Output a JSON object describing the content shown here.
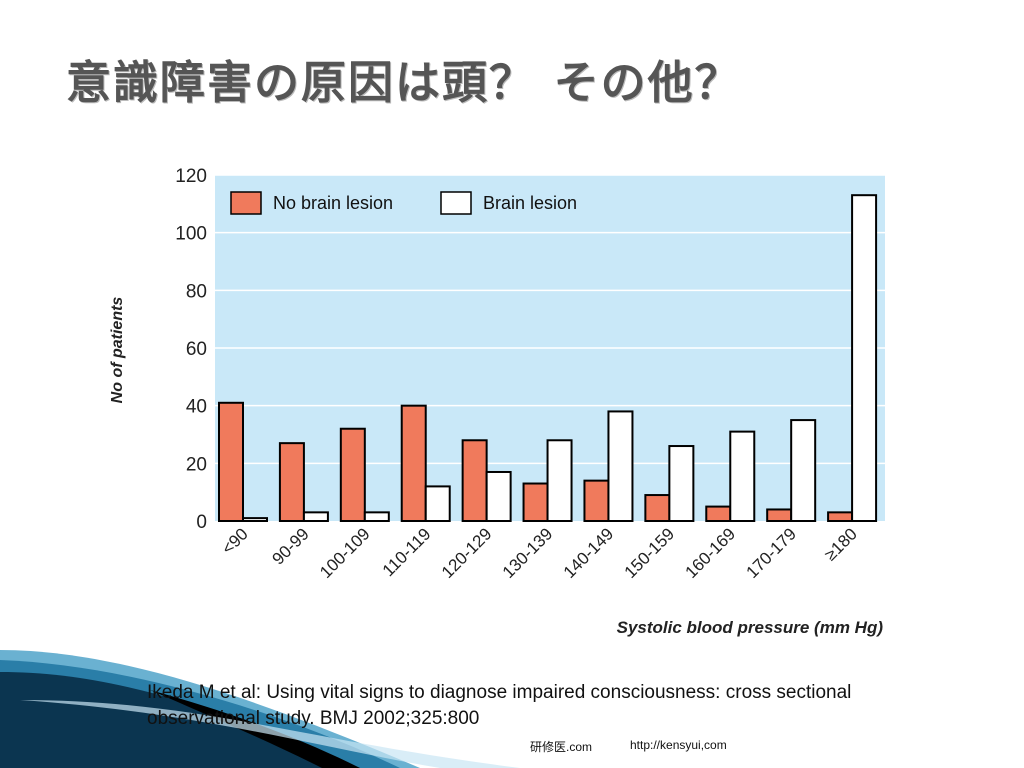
{
  "slide": {
    "title": "意識障害の原因は頭？ その他？",
    "citation": "Ikeda M et al: Using vital signs to diagnose impaired consciousness: cross sectional observational study. BMJ 2002;325:800",
    "footer_site_name": "研修医.com",
    "footer_site_url": "http://kensyui,com"
  },
  "colors": {
    "plot_background": "#c9e8f8",
    "no_lesion_fill": "#f07a5c",
    "lesion_fill": "#ffffff",
    "title_color": "#555555",
    "swoosh_dark": "#0b3550",
    "swoosh_light": "#5aa9cc"
  },
  "chart_data": {
    "type": "bar",
    "title": "",
    "xlabel": "Systolic blood pressure (mm Hg)",
    "ylabel": "No of patients",
    "ylim": [
      0,
      120
    ],
    "yticks": [
      0,
      20,
      40,
      60,
      80,
      100,
      120
    ],
    "grid": true,
    "legend_position": "top-left",
    "categories": [
      "<90",
      "90-99",
      "100-109",
      "110-119",
      "120-129",
      "130-139",
      "140-149",
      "150-159",
      "160-169",
      "170-179",
      "≥180"
    ],
    "series": [
      {
        "name": "No brain lesion",
        "color": "#f07a5c",
        "values": [
          41,
          27,
          32,
          40,
          28,
          13,
          14,
          9,
          5,
          4,
          3
        ]
      },
      {
        "name": "Brain lesion",
        "color": "#ffffff",
        "values": [
          1,
          3,
          3,
          12,
          17,
          28,
          38,
          26,
          31,
          35,
          113
        ]
      }
    ]
  }
}
